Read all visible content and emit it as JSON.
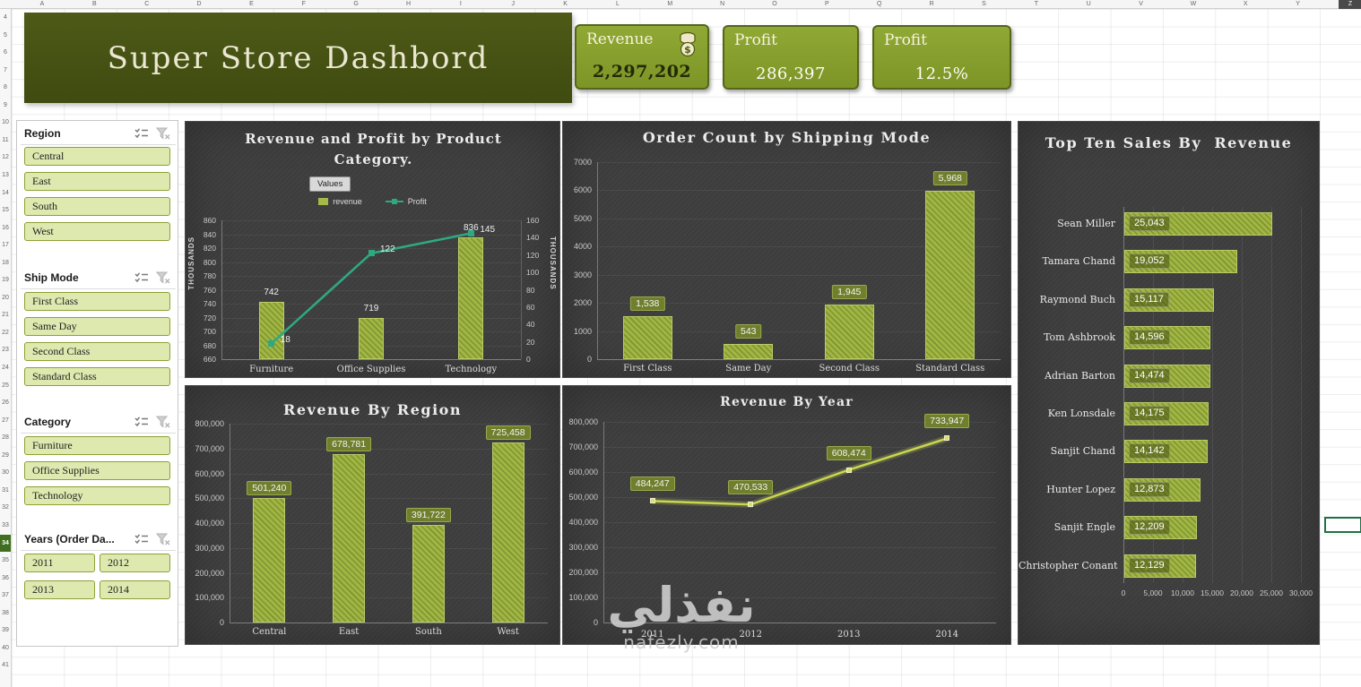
{
  "spreadsheet": {
    "columns": [
      "A",
      "B",
      "C",
      "D",
      "E",
      "F",
      "G",
      "H",
      "I",
      "J",
      "K",
      "L",
      "M",
      "N",
      "O",
      "P",
      "Q",
      "R",
      "S",
      "T",
      "U",
      "V",
      "W",
      "X",
      "Y",
      "Z"
    ],
    "rows": [
      "4",
      "5",
      "6",
      "7",
      "8",
      "9",
      "10",
      "11",
      "12",
      "13",
      "14",
      "15",
      "16",
      "17",
      "18",
      "19",
      "20",
      "21",
      "22",
      "23",
      "24",
      "25",
      "26",
      "27",
      "28",
      "29",
      "30",
      "31",
      "32",
      "33",
      "34",
      "35",
      "36",
      "37",
      "38",
      "39",
      "40",
      "41"
    ],
    "selected_row": "34",
    "selected_column": "Z"
  },
  "header": {
    "title": "Super Store Dashbord"
  },
  "kpis": [
    {
      "label": "Revenue",
      "value": "2,297,202",
      "icon": "money-bag-icon"
    },
    {
      "label": "Profit",
      "value": "286,397"
    },
    {
      "label": "Profit",
      "value": "12.5%"
    }
  ],
  "slicers": [
    {
      "title": "Region",
      "items": [
        "Central",
        "East",
        "South",
        "West"
      ],
      "columns": 1
    },
    {
      "title": "Ship Mode",
      "items": [
        "First Class",
        "Same Day",
        "Second Class",
        "Standard Class"
      ],
      "columns": 1
    },
    {
      "title": "Category",
      "items": [
        "Furniture",
        "Office Supplies",
        "Technology"
      ],
      "columns": 1
    },
    {
      "title": "Years (Order Da...",
      "items": [
        "2011",
        "2012",
        "2013",
        "2014"
      ],
      "columns": 2
    }
  ],
  "chart_data": [
    {
      "type": "combo",
      "title": "Revenue and Profit by Product Category.",
      "field_button": "Values",
      "categories": [
        "Furniture",
        "Office Supplies",
        "Technology"
      ],
      "series": [
        {
          "name": "revenue",
          "type": "bar",
          "axis": "left",
          "values": [
            742,
            719,
            836
          ]
        },
        {
          "name": "Profit",
          "type": "line",
          "axis": "right",
          "values": [
            18,
            122,
            145
          ]
        }
      ],
      "left_axis": {
        "label": "THOUSANDS",
        "min": 660,
        "max": 860,
        "step": 20
      },
      "right_axis": {
        "label": "THOUSANDS",
        "min": 0,
        "max": 160,
        "step": 20
      },
      "legend_position": "top"
    },
    {
      "type": "bar",
      "title": "Order Count by Shipping Mode",
      "categories": [
        "First Class",
        "Same Day",
        "Second Class",
        "Standard Class"
      ],
      "values": [
        1538,
        543,
        1945,
        5968
      ],
      "labels": [
        "1,538",
        "543",
        "1,945",
        "5,968"
      ],
      "ylim": [
        0,
        7000
      ],
      "step": 1000,
      "grid": true
    },
    {
      "type": "bar",
      "title": "Revenue By Region",
      "categories": [
        "Central",
        "East",
        "South",
        "West"
      ],
      "values": [
        501240,
        678781,
        391722,
        725458
      ],
      "labels": [
        "501,240",
        "678,781",
        "391,722",
        "725,458"
      ],
      "ylim": [
        0,
        800000
      ],
      "step": 100000,
      "grid": true
    },
    {
      "type": "line",
      "title": "Revenue By Year",
      "categories": [
        "2011",
        "2012",
        "2013",
        "2014"
      ],
      "values": [
        484247,
        470533,
        608474,
        733947
      ],
      "labels": [
        "484,247",
        "470,533",
        "608,474",
        "733,947"
      ],
      "ylim": [
        0,
        800000
      ],
      "step": 100000,
      "grid": true
    },
    {
      "type": "hbar",
      "title": "Top Ten Sales By  Revenue",
      "categories": [
        "Sean Miller",
        "Tamara Chand",
        "Raymond Buch",
        "Tom Ashbrook",
        "Adrian Barton",
        "Ken Lonsdale",
        "Sanjit Chand",
        "Hunter Lopez",
        "Sanjit Engle",
        "Christopher Conant"
      ],
      "values": [
        25043,
        19052,
        15117,
        14596,
        14474,
        14175,
        14142,
        12873,
        12209,
        12129
      ],
      "labels": [
        "25,043",
        "19,052",
        "15,117",
        "14,596",
        "14,474",
        "14,175",
        "14,142",
        "12,873",
        "12,209",
        "12,129"
      ],
      "xlim": [
        0,
        30000
      ],
      "step": 5000,
      "x_ticks": [
        "0",
        "5,000",
        "10,000",
        "15,000",
        "20,000",
        "25,000",
        "30,000"
      ]
    }
  ],
  "watermark": {
    "name": "نفذلي",
    "domain": "nafezly.com"
  },
  "colors": {
    "banner": "#47541a",
    "kpi_card": "#87a02c",
    "bar_fill": "#a0b642",
    "profit_line": "#2fa882",
    "year_line": "#c9d64e",
    "chart_panel": "#3d3d3d",
    "slicer_item": "#dde9af"
  }
}
